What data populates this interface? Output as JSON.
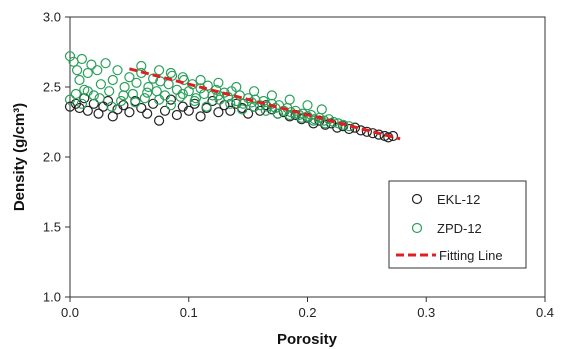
{
  "chart_data": {
    "type": "scatter",
    "xlabel": "Porosity",
    "ylabel": "Density (g/cm³)",
    "xlim": [
      0,
      0.4
    ],
    "ylim": [
      1.0,
      3.0
    ],
    "xticks": [
      "0.0",
      "0.1",
      "0.2",
      "0.3",
      "0.4"
    ],
    "yticks": [
      "1.0",
      "1.5",
      "2.0",
      "2.5",
      "3.0"
    ],
    "grid": false,
    "legend_position": "bottom-right",
    "series": [
      {
        "name": "EKL-12",
        "marker": "open-circle",
        "color": "#222222",
        "points": [
          [
            0.0,
            2.36
          ],
          [
            0.005,
            2.38
          ],
          [
            0.008,
            2.35
          ],
          [
            0.012,
            2.42
          ],
          [
            0.015,
            2.33
          ],
          [
            0.02,
            2.38
          ],
          [
            0.024,
            2.31
          ],
          [
            0.028,
            2.36
          ],
          [
            0.032,
            2.4
          ],
          [
            0.036,
            2.29
          ],
          [
            0.04,
            2.34
          ],
          [
            0.045,
            2.37
          ],
          [
            0.05,
            2.32
          ],
          [
            0.055,
            2.4
          ],
          [
            0.06,
            2.35
          ],
          [
            0.065,
            2.31
          ],
          [
            0.07,
            2.38
          ],
          [
            0.075,
            2.26
          ],
          [
            0.08,
            2.33
          ],
          [
            0.085,
            2.41
          ],
          [
            0.09,
            2.3
          ],
          [
            0.095,
            2.36
          ],
          [
            0.1,
            2.33
          ],
          [
            0.105,
            2.38
          ],
          [
            0.11,
            2.29
          ],
          [
            0.115,
            2.35
          ],
          [
            0.12,
            2.4
          ],
          [
            0.125,
            2.32
          ],
          [
            0.13,
            2.37
          ],
          [
            0.135,
            2.33
          ],
          [
            0.14,
            2.38
          ],
          [
            0.145,
            2.35
          ],
          [
            0.15,
            2.31
          ],
          [
            0.155,
            2.36
          ],
          [
            0.16,
            2.33
          ],
          [
            0.165,
            2.37
          ],
          [
            0.17,
            2.34
          ],
          [
            0.175,
            2.31
          ],
          [
            0.18,
            2.32
          ],
          [
            0.185,
            2.29
          ],
          [
            0.19,
            2.3
          ],
          [
            0.195,
            2.27
          ],
          [
            0.2,
            2.28
          ],
          [
            0.205,
            2.24
          ],
          [
            0.21,
            2.26
          ],
          [
            0.215,
            2.23
          ],
          [
            0.22,
            2.24
          ],
          [
            0.225,
            2.21
          ],
          [
            0.23,
            2.22
          ],
          [
            0.235,
            2.2
          ],
          [
            0.24,
            2.21
          ],
          [
            0.245,
            2.19
          ],
          [
            0.25,
            2.18
          ],
          [
            0.255,
            2.17
          ],
          [
            0.26,
            2.16
          ],
          [
            0.265,
            2.15
          ],
          [
            0.268,
            2.14
          ],
          [
            0.272,
            2.15
          ]
        ]
      },
      {
        "name": "ZPD-12",
        "marker": "open-circle",
        "color": "#2aa05a",
        "points": [
          [
            0.0,
            2.72
          ],
          [
            0.003,
            2.68
          ],
          [
            0.006,
            2.62
          ],
          [
            0.008,
            2.55
          ],
          [
            0.01,
            2.7
          ],
          [
            0.012,
            2.48
          ],
          [
            0.015,
            2.6
          ],
          [
            0.018,
            2.66
          ],
          [
            0.02,
            2.44
          ],
          [
            0.023,
            2.62
          ],
          [
            0.026,
            2.52
          ],
          [
            0.03,
            2.67
          ],
          [
            0.033,
            2.47
          ],
          [
            0.036,
            2.55
          ],
          [
            0.04,
            2.62
          ],
          [
            0.043,
            2.4
          ],
          [
            0.046,
            2.5
          ],
          [
            0.05,
            2.57
          ],
          [
            0.053,
            2.45
          ],
          [
            0.056,
            2.53
          ],
          [
            0.06,
            2.6
          ],
          [
            0.063,
            2.42
          ],
          [
            0.066,
            2.5
          ],
          [
            0.07,
            2.56
          ],
          [
            0.073,
            2.47
          ],
          [
            0.076,
            2.54
          ],
          [
            0.08,
            2.44
          ],
          [
            0.083,
            2.52
          ],
          [
            0.086,
            2.58
          ],
          [
            0.09,
            2.48
          ],
          [
            0.093,
            2.43
          ],
          [
            0.096,
            2.55
          ],
          [
            0.1,
            2.47
          ],
          [
            0.103,
            2.52
          ],
          [
            0.106,
            2.42
          ],
          [
            0.11,
            2.49
          ],
          [
            0.113,
            2.45
          ],
          [
            0.116,
            2.51
          ],
          [
            0.12,
            2.44
          ],
          [
            0.123,
            2.48
          ],
          [
            0.126,
            2.41
          ],
          [
            0.13,
            2.46
          ],
          [
            0.133,
            2.43
          ],
          [
            0.136,
            2.47
          ],
          [
            0.14,
            2.4
          ],
          [
            0.143,
            2.44
          ],
          [
            0.146,
            2.38
          ],
          [
            0.15,
            2.42
          ],
          [
            0.153,
            2.39
          ],
          [
            0.156,
            2.41
          ],
          [
            0.16,
            2.37
          ],
          [
            0.163,
            2.4
          ],
          [
            0.166,
            2.36
          ],
          [
            0.17,
            2.38
          ],
          [
            0.173,
            2.35
          ],
          [
            0.176,
            2.37
          ],
          [
            0.18,
            2.33
          ],
          [
            0.183,
            2.35
          ],
          [
            0.186,
            2.32
          ],
          [
            0.19,
            2.33
          ],
          [
            0.193,
            2.3
          ],
          [
            0.196,
            2.31
          ],
          [
            0.2,
            2.29
          ],
          [
            0.203,
            2.3
          ],
          [
            0.206,
            2.27
          ],
          [
            0.21,
            2.28
          ],
          [
            0.214,
            2.26
          ],
          [
            0.218,
            2.27
          ],
          [
            0.222,
            2.25
          ],
          [
            0.226,
            2.24
          ],
          [
            0.23,
            2.23
          ],
          [
            0.235,
            2.22
          ],
          [
            0.0,
            2.41
          ],
          [
            0.005,
            2.45
          ],
          [
            0.01,
            2.38
          ],
          [
            0.015,
            2.47
          ],
          [
            0.025,
            2.42
          ],
          [
            0.035,
            2.36
          ],
          [
            0.045,
            2.44
          ],
          [
            0.055,
            2.39
          ],
          [
            0.065,
            2.46
          ],
          [
            0.075,
            2.41
          ],
          [
            0.085,
            2.37
          ],
          [
            0.095,
            2.45
          ],
          [
            0.105,
            2.4
          ],
          [
            0.115,
            2.36
          ],
          [
            0.125,
            2.44
          ],
          [
            0.135,
            2.38
          ],
          [
            0.145,
            2.34
          ],
          [
            0.155,
            2.36
          ],
          [
            0.165,
            2.33
          ],
          [
            0.175,
            2.31
          ],
          [
            0.185,
            2.3
          ],
          [
            0.195,
            2.28
          ],
          [
            0.205,
            2.26
          ],
          [
            0.215,
            2.24
          ],
          [
            0.06,
            2.65
          ],
          [
            0.075,
            2.62
          ],
          [
            0.085,
            2.6
          ],
          [
            0.095,
            2.57
          ],
          [
            0.11,
            2.55
          ],
          [
            0.125,
            2.53
          ],
          [
            0.14,
            2.5
          ],
          [
            0.155,
            2.47
          ],
          [
            0.17,
            2.44
          ],
          [
            0.185,
            2.41
          ],
          [
            0.2,
            2.37
          ],
          [
            0.212,
            2.34
          ]
        ]
      },
      {
        "name": "Fitting Line",
        "marker": "dashed-line",
        "color": "#e02020",
        "points": [
          [
            0.05,
            2.63
          ],
          [
            0.278,
            2.13
          ]
        ]
      }
    ]
  }
}
